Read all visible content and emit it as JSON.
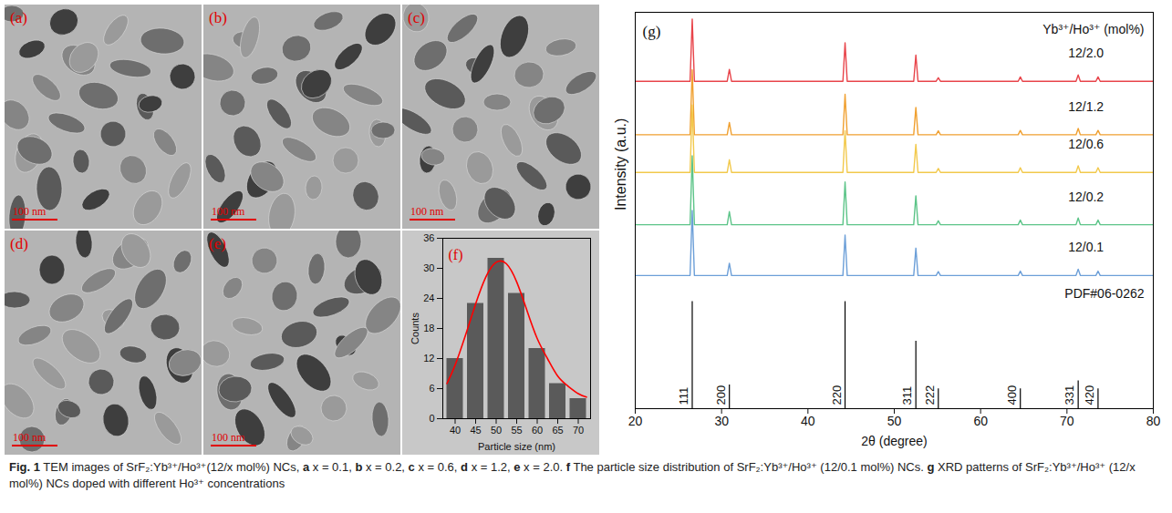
{
  "images": [
    {
      "label": "(a)",
      "scale_bar": "100 nm"
    },
    {
      "label": "(b)",
      "scale_bar": "100 nm"
    },
    {
      "label": "(c)",
      "scale_bar": "100 nm"
    },
    {
      "label": "(d)",
      "scale_bar": "100 nm"
    },
    {
      "label": "(e)",
      "scale_bar": "100 nm"
    }
  ],
  "chart_data": [
    {
      "type": "bar",
      "title": "(f)",
      "xlabel": "Particle size (nm)",
      "ylabel": "Counts",
      "xlim": [
        37,
        73
      ],
      "ylim": [
        0,
        36
      ],
      "xticks": [
        40,
        45,
        50,
        55,
        60,
        65,
        70
      ],
      "yticks": [
        0,
        6,
        12,
        18,
        24,
        30,
        36
      ],
      "series": [
        {
          "type": "bar",
          "color": "#5a5a5a",
          "x": [
            40,
            45,
            50,
            55,
            60,
            65,
            70
          ],
          "values": [
            12,
            23,
            32,
            25,
            14,
            7,
            4
          ]
        },
        {
          "type": "line",
          "color": "#ff0000",
          "x": [
            38,
            40,
            42.5,
            45,
            47.5,
            50,
            52.5,
            55,
            57.5,
            60,
            62.5,
            65,
            67.5,
            70,
            72
          ],
          "values": [
            7.0,
            10.7,
            16.6,
            22.9,
            28.3,
            31.2,
            30.9,
            27.3,
            21.6,
            16,
            12,
            8.5,
            6.5,
            5,
            4.3
          ]
        }
      ]
    },
    {
      "type": "line",
      "title": "(g)",
      "xlabel": "2θ (degree)",
      "ylabel": "Intensity (a.u.)",
      "xlim": [
        20,
        80
      ],
      "ylim": [
        0,
        100
      ],
      "xticks": [
        20,
        30,
        40,
        50,
        60,
        70,
        80
      ],
      "tick_labels": "x",
      "annotations": [
        "Yb³⁺/Ho³⁺ (mol%)"
      ],
      "x": [
        20,
        26.35,
        26.6,
        26.85,
        30.65,
        30.9,
        31.15,
        44.05,
        44.3,
        44.55,
        52.25,
        52.5,
        52.75,
        54.85,
        55.1,
        55.35,
        64.35,
        64.6,
        64.85,
        71.05,
        71.3,
        71.55,
        73.35,
        73.6,
        73.85,
        80
      ],
      "series": [
        {
          "name": "12/2.0",
          "color": "#e8444a",
          "values": [
            82.6,
            82.6,
            98.3,
            82.6,
            82.6,
            85.6,
            82.6,
            82.6,
            92.3,
            82.6,
            82.6,
            89.2,
            82.6,
            82.6,
            83.5,
            82.6,
            82.6,
            83.7,
            82.6,
            82.6,
            84.2,
            82.6,
            82.6,
            83.7,
            82.6,
            82.6
          ]
        },
        {
          "name": "12/1.2",
          "color": "#f0a030",
          "values": [
            69.1,
            69.1,
            85.5,
            69.1,
            69.1,
            72.2,
            69.1,
            69.1,
            79.3,
            69.1,
            69.1,
            76.0,
            69.1,
            69.1,
            70.1,
            69.1,
            69.1,
            70.2,
            69.1,
            69.1,
            70.7,
            69.1,
            69.1,
            70.2,
            69.1,
            69.1
          ]
        },
        {
          "name": "12/0.6",
          "color": "#f2c94c",
          "values": [
            59.6,
            59.6,
            76.6,
            59.6,
            59.6,
            62.8,
            59.6,
            59.6,
            70.1,
            59.6,
            59.6,
            66.7,
            59.6,
            59.6,
            60.6,
            59.6,
            59.6,
            60.8,
            59.6,
            59.6,
            61.3,
            59.6,
            59.6,
            60.8,
            59.6,
            59.6
          ]
        },
        {
          "name": "12/0.2",
          "color": "#5cc488",
          "values": [
            46.4,
            46.4,
            63.8,
            46.4,
            46.4,
            49.7,
            46.4,
            46.4,
            57.2,
            46.4,
            46.4,
            53.7,
            46.4,
            46.4,
            47.4,
            46.4,
            46.4,
            47.6,
            46.4,
            46.4,
            48.1,
            46.4,
            46.4,
            47.6,
            46.4,
            46.4
          ]
        },
        {
          "name": "12/0.1",
          "color": "#6c9fd8",
          "values": [
            33.6,
            33.6,
            50.0,
            33.6,
            33.6,
            36.7,
            33.6,
            33.6,
            43.8,
            33.6,
            33.6,
            40.5,
            33.6,
            33.6,
            34.6,
            33.6,
            33.6,
            34.7,
            33.6,
            33.6,
            35.2,
            33.6,
            33.6,
            34.7,
            33.6,
            33.6
          ]
        },
        {
          "name": "PDF#06-0262",
          "type": "bar",
          "color": "#000000",
          "x": [
            26.6,
            30.9,
            44.3,
            52.5,
            55.1,
            64.6,
            71.3,
            73.6
          ],
          "values": [
            27,
            6,
            27,
            17,
            5,
            5,
            7,
            5
          ],
          "labels": [
            "111",
            "200",
            "220",
            "311",
            "222",
            "400",
            "331",
            "420"
          ]
        }
      ]
    }
  ],
  "caption": [
    {
      "text": "Fig. 1",
      "bold": true
    },
    {
      "text": "  TEM images of SrF₂:Yb³⁺/Ho³⁺(12/x mol%) NCs, ",
      "bold": false
    },
    {
      "text": "a",
      "bold": true
    },
    {
      "text": " x = 0.1, ",
      "bold": false
    },
    {
      "text": "b",
      "bold": true
    },
    {
      "text": " x = 0.2, ",
      "bold": false
    },
    {
      "text": "c",
      "bold": true
    },
    {
      "text": " x = 0.6, ",
      "bold": false
    },
    {
      "text": "d",
      "bold": true
    },
    {
      "text": " x = 1.2, ",
      "bold": false
    },
    {
      "text": "e",
      "bold": true
    },
    {
      "text": " x = 2.0. ",
      "bold": false
    },
    {
      "text": "f",
      "bold": true
    },
    {
      "text": " The particle size distribution of SrF₂:Yb³⁺/Ho³⁺ (12/0.1 mol%) NCs. ",
      "bold": false
    },
    {
      "text": "g",
      "bold": true
    },
    {
      "text": " XRD patterns of SrF₂:Yb³⁺/Ho³⁺ (12/x mol%) NCs doped with different Ho³⁺ concentrations",
      "bold": false
    }
  ]
}
